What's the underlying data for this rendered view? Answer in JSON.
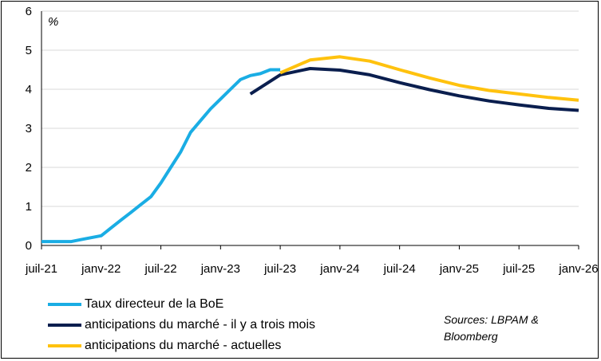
{
  "chart_data": {
    "type": "line",
    "unit_label": "%",
    "x_tick_labels": [
      "juil-21",
      "janv-22",
      "juil-22",
      "janv-23",
      "juil-23",
      "janv-24",
      "juil-24",
      "janv-25",
      "juil-25",
      "janv-26"
    ],
    "x_ticks": [
      "2021-07",
      "2022-01",
      "2022-07",
      "2023-01",
      "2023-07",
      "2024-01",
      "2024-07",
      "2025-01",
      "2025-07",
      "2026-01"
    ],
    "y_ticks": [
      0,
      1,
      2,
      3,
      4,
      5,
      6
    ],
    "ylim": [
      0,
      6
    ],
    "xlim": [
      "2021-07",
      "2026-01"
    ],
    "grid": "horizontal",
    "series": [
      {
        "name": "Taux directeur de la BoE",
        "color": "#1AADE4",
        "x": [
          "2021-07",
          "2021-08",
          "2021-09",
          "2021-10",
          "2021-11",
          "2021-12",
          "2022-01",
          "2022-02",
          "2022-03",
          "2022-04",
          "2022-05",
          "2022-06",
          "2022-07",
          "2022-08",
          "2022-09",
          "2022-10",
          "2022-11",
          "2022-12",
          "2023-01",
          "2023-02",
          "2023-03",
          "2023-04",
          "2023-05",
          "2023-06",
          "2023-07"
        ],
        "values": [
          0.1,
          0.1,
          0.1,
          0.1,
          0.15,
          0.2,
          0.25,
          0.45,
          0.65,
          0.85,
          1.05,
          1.25,
          1.6,
          2.0,
          2.4,
          2.9,
          3.2,
          3.5,
          3.75,
          4.0,
          4.25,
          4.35,
          4.4,
          4.5,
          4.5
        ]
      },
      {
        "name": "anticipations du marché - il y a trois mois",
        "color": "#0A1E4E",
        "x": [
          "2023-04",
          "2023-07",
          "2023-10",
          "2024-01",
          "2024-04",
          "2024-07",
          "2024-10",
          "2025-01",
          "2025-04",
          "2025-07",
          "2025-10",
          "2026-01"
        ],
        "values": [
          3.88,
          4.37,
          4.53,
          4.49,
          4.37,
          4.17,
          3.99,
          3.83,
          3.7,
          3.6,
          3.51,
          3.46
        ]
      },
      {
        "name": "anticipations du marché - actuelles",
        "color": "#FFC20E",
        "x": [
          "2023-07",
          "2023-10",
          "2024-01",
          "2024-04",
          "2024-07",
          "2024-10",
          "2025-01",
          "2025-04",
          "2025-07",
          "2025-10",
          "2026-01"
        ],
        "values": [
          4.42,
          4.75,
          4.83,
          4.72,
          4.5,
          4.29,
          4.1,
          3.97,
          3.88,
          3.79,
          3.72
        ]
      }
    ]
  },
  "sources": "Sources: LBPAM & Bloomberg"
}
